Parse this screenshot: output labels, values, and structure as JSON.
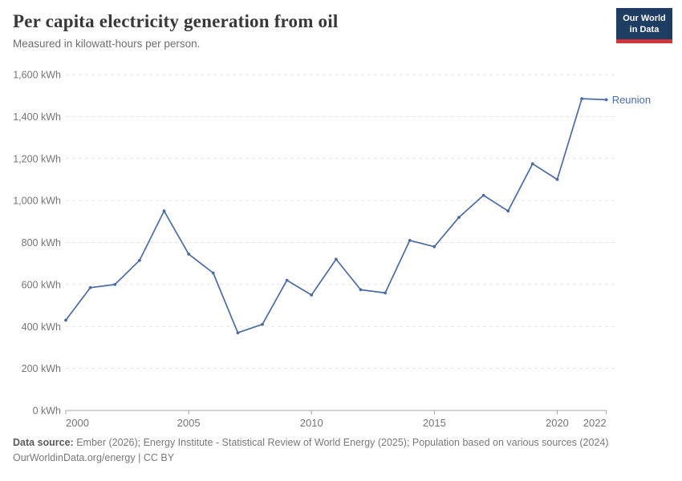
{
  "header": {
    "title": "Per capita electricity generation from oil",
    "subtitle": "Measured in kilowatt-hours per person.",
    "logo": {
      "line1": "Our World",
      "line2": "in Data",
      "bg_color": "#1d3d63",
      "bar_color": "#d0353b"
    }
  },
  "chart_data": {
    "type": "line",
    "title": "Per capita electricity generation from oil",
    "subtitle": "Measured in kilowatt-hours per person.",
    "unit": "kWh",
    "xlim": [
      2000,
      2022
    ],
    "ylim": [
      0,
      1600
    ],
    "ytick_step": 200,
    "xticks": [
      2000,
      2005,
      2010,
      2015,
      2020,
      2022
    ],
    "grid": "horizontal-dashed",
    "legend_position": "end-of-line-label",
    "categories": [
      2000,
      2001,
      2002,
      2003,
      2004,
      2005,
      2006,
      2007,
      2008,
      2009,
      2010,
      2011,
      2012,
      2013,
      2014,
      2015,
      2016,
      2017,
      2018,
      2019,
      2020,
      2021,
      2022
    ],
    "series": [
      {
        "name": "Reunion",
        "color": "#4c6ba3",
        "values": [
          430,
          585,
          600,
          715,
          950,
          745,
          655,
          370,
          410,
          620,
          550,
          720,
          575,
          560,
          810,
          780,
          920,
          1025,
          950,
          1175,
          1100,
          1485,
          1480
        ]
      }
    ]
  },
  "colors": {
    "grid": "#e3e3e3",
    "axis": "#a6a6a6",
    "tick_label": "#757575",
    "line": "#4c6ba3",
    "entity_label": "#4c6ba3"
  },
  "footer": {
    "source_label": "Data source:",
    "source_text": "Ember (2026); Energy Institute - Statistical Review of World Energy (2025); Population based on various sources (2024)",
    "url": "OurWorldinData.org/energy",
    "separator": " | ",
    "license": "CC BY"
  }
}
